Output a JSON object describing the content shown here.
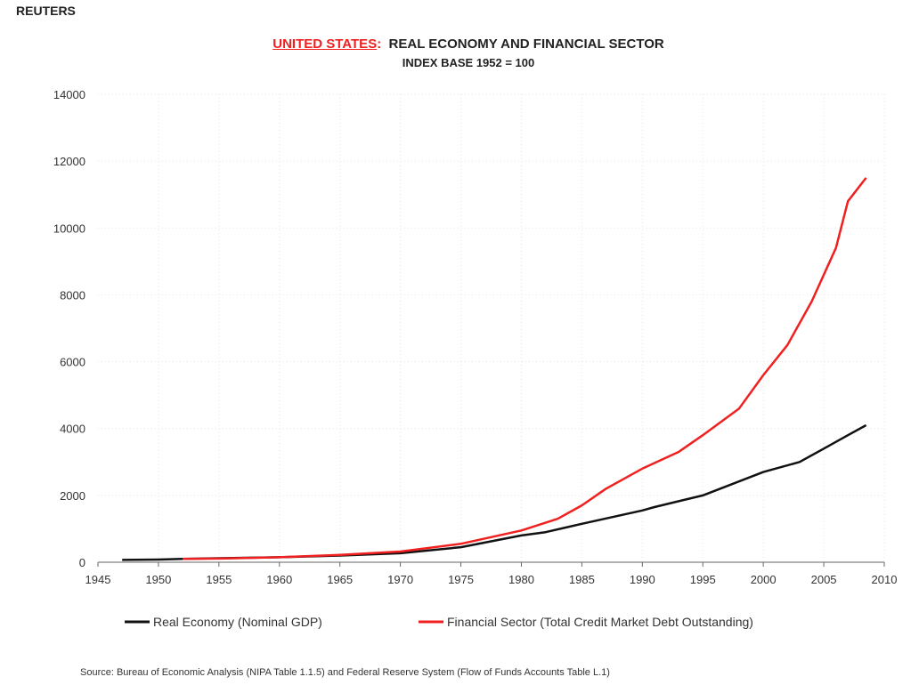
{
  "brand": "REUTERS",
  "source": "Source:  Bureau of Economic Analysis (NIPA Table 1.1.5) and Federal Reserve System (Flow of Funds Accounts Table L.1)",
  "chart_data": {
    "type": "line",
    "title_highlight": "UNITED STATES",
    "title_sep": ":",
    "title": "REAL ECONOMY AND FINANCIAL SECTOR",
    "subtitle": "INDEX BASE 1952 = 100",
    "xlabel": "",
    "ylabel": "",
    "xlim": [
      1945,
      2010
    ],
    "ylim": [
      0,
      14000
    ],
    "xticks": [
      "1945",
      "1950",
      "1955",
      "1960",
      "1965",
      "1970",
      "1975",
      "1980",
      "1985",
      "1990",
      "1995",
      "2000",
      "2005",
      "2010"
    ],
    "yticks": [
      "0",
      "2000",
      "4000",
      "6000",
      "8000",
      "10000",
      "12000",
      "14000"
    ],
    "grid": true,
    "legend_position": "bottom",
    "series": [
      {
        "name": "Real Economy (Nominal GDP)",
        "color": "#111111",
        "x": [
          1947,
          1950,
          1952,
          1955,
          1960,
          1965,
          1970,
          1975,
          1980,
          1982,
          1985,
          1990,
          1991,
          1995,
          2000,
          2003,
          2005,
          2007,
          2008.5
        ],
        "y": [
          70,
          80,
          100,
          120,
          150,
          200,
          270,
          450,
          800,
          900,
          1150,
          1550,
          1650,
          2000,
          2700,
          3000,
          3400,
          3800,
          4100
        ]
      },
      {
        "name": "Financial Sector (Total Credit Market Debt Outstanding)",
        "color": "#f02020",
        "x": [
          1952,
          1955,
          1960,
          1965,
          1970,
          1975,
          1980,
          1983,
          1985,
          1987,
          1990,
          1993,
          1995,
          1998,
          2000,
          2002,
          2004,
          2006,
          2007,
          2008.5
        ],
        "y": [
          100,
          110,
          150,
          220,
          320,
          550,
          950,
          1300,
          1700,
          2200,
          2800,
          3300,
          3800,
          4600,
          5600,
          6500,
          7800,
          9400,
          10800,
          11500
        ]
      }
    ]
  }
}
